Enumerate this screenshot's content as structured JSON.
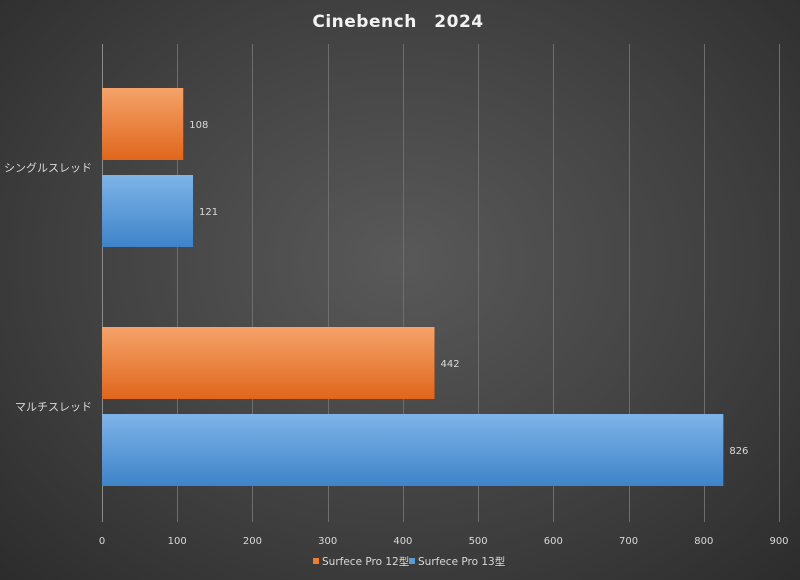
{
  "chart_data": {
    "type": "bar",
    "orientation": "horizontal",
    "title": "Cinebench　2024",
    "categories": [
      "シングルスレッド",
      "マルチスレッド"
    ],
    "series": [
      {
        "name": "Surfece Pro 12型",
        "values": [
          108,
          442
        ],
        "color": "#ed7d31"
      },
      {
        "name": "Surfece Pro 13型",
        "values": [
          121,
          826
        ],
        "color": "#5b9bd5"
      }
    ],
    "xlim": [
      0,
      900
    ],
    "xticks": [
      0,
      100,
      200,
      300,
      400,
      500,
      600,
      700,
      800,
      900
    ],
    "grid": true,
    "legend": "bottom",
    "data_labels": true
  }
}
